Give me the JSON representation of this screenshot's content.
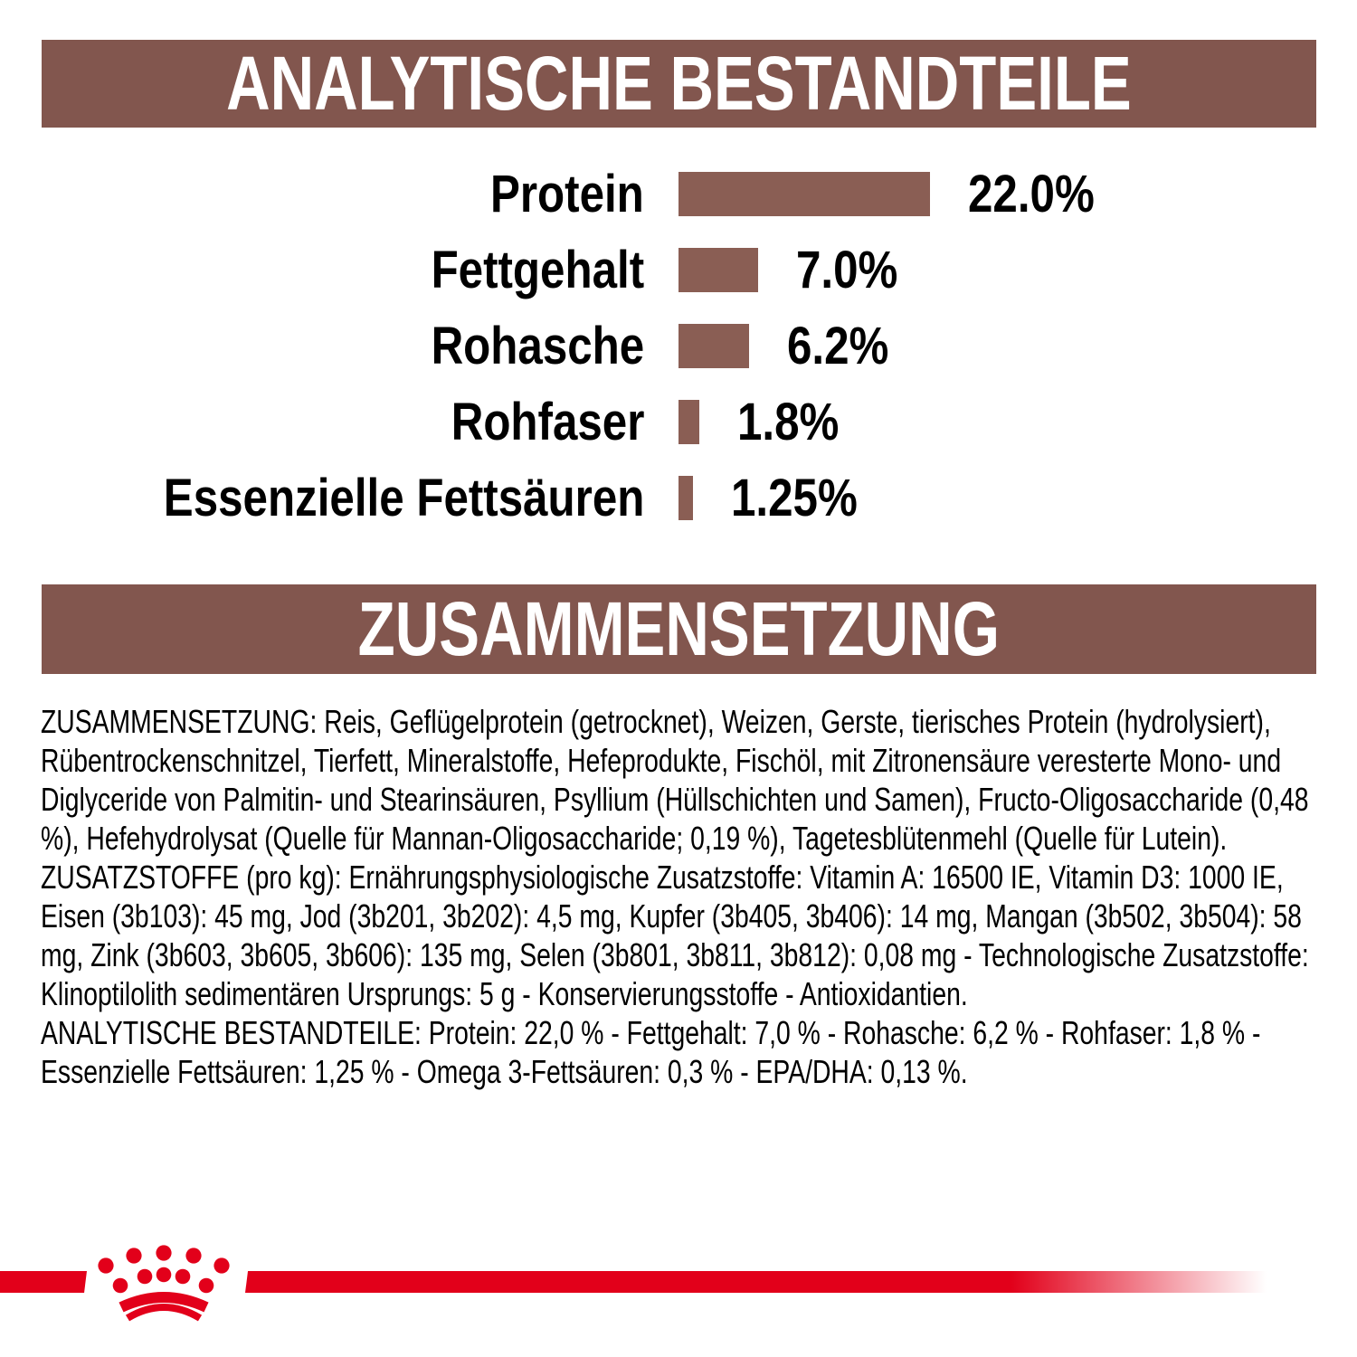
{
  "colors": {
    "brown": "#82564E",
    "bar_brown": "#8A5E54",
    "red": "#E2001A",
    "text": "#000000",
    "background": "#FFFFFF"
  },
  "banners": {
    "analytical": {
      "label": "ANALYTISCHE BESTANDTEILE"
    },
    "composition": {
      "label": "ZUSAMMENSETZUNG"
    }
  },
  "chart_data": {
    "type": "bar",
    "orientation": "horizontal",
    "title": "ANALYTISCHE BESTANDTEILE",
    "categories": [
      "Protein",
      "Fettgehalt",
      "Rohasche",
      "Rohfaser",
      "Essenzielle Fettsäuren"
    ],
    "values": [
      22.0,
      7.0,
      6.2,
      1.8,
      1.25
    ],
    "value_labels": [
      "22.0%",
      "7.0%",
      "6.2%",
      "1.8%",
      "1.25%"
    ],
    "unit": "%",
    "xlim": [
      0,
      22
    ],
    "bar_color": "#8A5E54",
    "grid": false,
    "legend": false
  },
  "composition_text": {
    "paragraphs": [
      "ZUSAMMENSETZUNG: Reis, Geflügelprotein (getrocknet), Weizen, Gerste, tierisches Protein (hydrolysiert), Rübentrockenschnitzel, Tierfett, Mineralstoffe, Hefeprodukte, Fischöl, mit Zitronensäure veresterte Mono- und Diglyceride von Palmitin- und Stearinsäuren, Psyllium (Hüllschichten und Samen), Fructo-Oligosaccharide (0,48 %), Hefehydrolysat (Quelle für Mannan-Oligosaccharide; 0,19 %), Tagetesblütenmehl (Quelle für Lutein).",
      "ZUSATZSTOFFE (pro kg): Ernährungsphysiologische Zusatzstoffe: Vitamin A: 16500 IE, Vitamin D3: 1000 IE, Eisen (3b103): 45 mg, Jod (3b201, 3b202): 4,5 mg, Kupfer (3b405, 3b406): 14 mg, Mangan (3b502, 3b504): 58 mg, Zink (3b603, 3b605, 3b606): 135 mg, Selen (3b801, 3b811, 3b812): 0,08 mg - Technologische Zusatzstoffe: Klinoptilolith sedimentären Ursprungs: 5 g - Konservierungsstoffe - Antioxidantien.",
      "ANALYTISCHE BESTANDTEILE: Protein: 22,0 % - Fettgehalt: 7,0 % - Rohasche: 6,2 % - Rohfaser: 1,8 % - Essenzielle Fettsäuren: 1,25 % - Omega 3-Fettsäuren: 0,3 % - EPA/DHA: 0,13 %."
    ]
  },
  "footer": {
    "logo_icon": "royal-canin-crown-icon",
    "stripe_color": "#E2001A"
  }
}
